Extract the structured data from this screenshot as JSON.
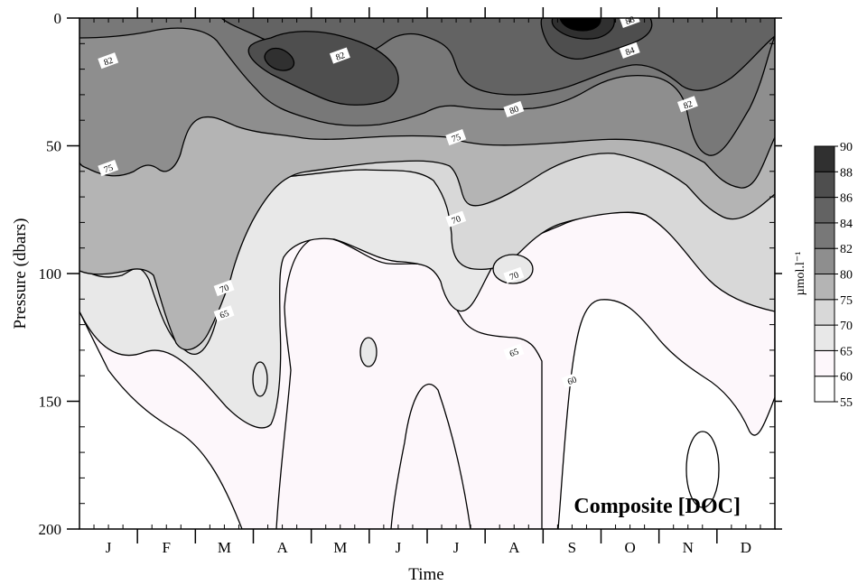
{
  "chart_data": {
    "type": "contour",
    "title": "Composite [DOC]",
    "xlabel": "Time",
    "ylabel": "Pressure (dbars)",
    "categories": [
      "J",
      "F",
      "M",
      "A",
      "M",
      "J",
      "J",
      "A",
      "S",
      "O",
      "N",
      "D"
    ],
    "y_ticks": [
      0,
      50,
      100,
      150,
      200
    ],
    "ylim": [
      0,
      200
    ],
    "y_inverted": true,
    "colorbar": {
      "unit": "µmol.l⁻¹",
      "levels": [
        55,
        60,
        65,
        70,
        75,
        80,
        82,
        84,
        86,
        88,
        90
      ],
      "colors": [
        "#ffffff",
        "#fdf7fb",
        "#e8e8e8",
        "#d8d8d8",
        "#b4b4b4",
        "#8e8e8e",
        "#787878",
        "#636363",
        "#4e4e4e",
        "#303030",
        "#000000"
      ]
    },
    "contour_labels": [
      {
        "value": "82",
        "month": "Jan",
        "pressure": 17
      },
      {
        "value": "75",
        "month": "Jan",
        "pressure": 59
      },
      {
        "value": "82",
        "month": "May",
        "pressure": 15
      },
      {
        "value": "80",
        "month": "Aug",
        "pressure": 36
      },
      {
        "value": "75",
        "month": "Jul",
        "pressure": 47
      },
      {
        "value": "88",
        "month": "Oct",
        "pressure": 1
      },
      {
        "value": "84",
        "month": "Oct",
        "pressure": 13
      },
      {
        "value": "82",
        "month": "Nov",
        "pressure": 34
      },
      {
        "value": "70",
        "month": "Jul",
        "pressure": 79
      },
      {
        "value": "70",
        "month": "Mar",
        "pressure": 106
      },
      {
        "value": "65",
        "month": "Mar",
        "pressure": 116
      },
      {
        "value": "70",
        "month": "Aug",
        "pressure": 101
      },
      {
        "value": "65",
        "month": "Aug",
        "pressure": 131
      },
      {
        "value": "60",
        "month": "Sep",
        "pressure": 142
      }
    ],
    "grid": false
  }
}
